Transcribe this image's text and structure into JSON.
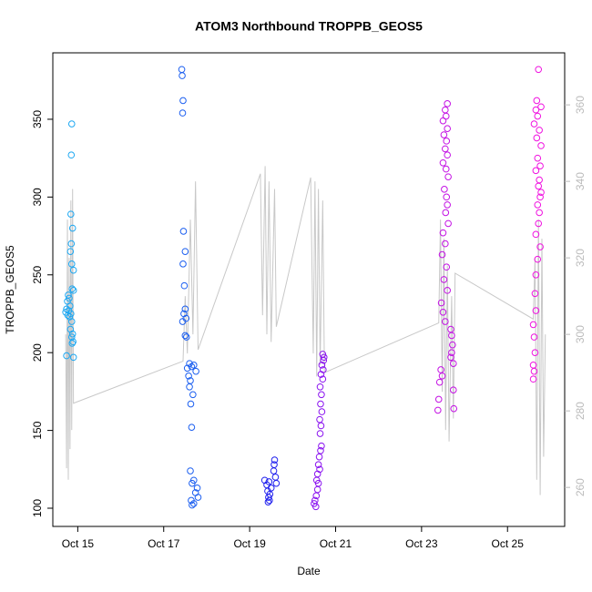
{
  "chart_data": {
    "type": "scatter",
    "title": "ATOM3 Northbound TROPPB_GEOS5",
    "x_label": "Date",
    "y_label": "TROPPB_GEOS5",
    "xlim": [
      14.42,
      26.33
    ],
    "xticks": [
      {
        "value": 15,
        "label": "Oct 15"
      },
      {
        "value": 17,
        "label": "Oct 17"
      },
      {
        "value": 19,
        "label": "Oct 19"
      },
      {
        "value": 21,
        "label": "Oct 21"
      },
      {
        "value": 23,
        "label": "Oct 23"
      },
      {
        "value": 25,
        "label": "Oct 25"
      }
    ],
    "ylim": [
      88.3,
      392.7
    ],
    "yticks": [
      100,
      150,
      200,
      250,
      300,
      350
    ],
    "y2lim": [
      249.8,
      373.6
    ],
    "y2ticks": [
      260,
      280,
      300,
      320,
      340,
      360
    ],
    "y2_color": "#bbbbbb",
    "series": [
      {
        "color": "#1ea8f2",
        "x": [
          14.86,
          14.85,
          14.84,
          14.88,
          14.85,
          14.83,
          14.86,
          14.9,
          14.87,
          14.9,
          14.78,
          14.8,
          14.76,
          14.82,
          14.74,
          14.79,
          14.72,
          14.84,
          14.77,
          14.81,
          14.86,
          14.83,
          14.88,
          14.86,
          14.89,
          14.87,
          14.74,
          14.9
        ],
        "values": [
          347,
          327,
          289,
          280,
          270,
          265,
          257,
          253,
          241,
          240,
          237,
          235,
          233,
          230,
          228,
          227,
          226,
          225,
          224,
          223,
          220,
          215,
          212,
          210,
          207,
          206,
          198,
          197
        ]
      },
      {
        "color": "#1c5ff0",
        "x": [
          17.42,
          17.43,
          17.45,
          17.44,
          17.46,
          17.5,
          17.45,
          17.48,
          17.5,
          17.47,
          17.52,
          17.44,
          17.5,
          17.53,
          17.6,
          17.7,
          17.65,
          17.55,
          17.75,
          17.58,
          17.62,
          17.6,
          17.68,
          17.63,
          17.65,
          17.62,
          17.7,
          17.66,
          17.78,
          17.74,
          17.8,
          17.64,
          17.7,
          17.66
        ],
        "values": [
          382,
          378,
          362,
          354,
          278,
          265,
          257,
          243,
          228,
          225,
          222,
          220,
          211,
          210,
          193,
          192,
          191,
          190,
          188,
          185,
          182,
          178,
          173,
          167,
          152,
          124,
          118,
          116,
          113,
          110,
          107,
          105,
          103,
          102
        ]
      },
      {
        "color": "#2020ee",
        "x": [
          19.58,
          19.57,
          19.56,
          19.6,
          19.35,
          19.45,
          19.62,
          19.4,
          19.5,
          19.42,
          19.47,
          19.44,
          19.46,
          19.43
        ],
        "values": [
          131,
          128,
          124,
          120,
          118,
          117,
          116,
          115,
          113,
          111,
          109,
          107,
          105,
          104
        ]
      },
      {
        "color": "#8a12f0",
        "x": [
          20.7,
          20.73,
          20.72,
          20.68,
          20.71,
          20.66,
          20.7,
          20.64,
          20.67,
          20.65,
          20.68,
          20.63,
          20.66,
          20.64,
          20.67,
          20.65,
          20.62,
          20.6,
          20.63,
          20.58,
          20.56,
          20.6,
          20.58,
          20.55,
          20.52,
          20.5,
          20.54
        ],
        "values": [
          199,
          197,
          195,
          192,
          189,
          186,
          183,
          178,
          173,
          167,
          162,
          157,
          153,
          148,
          140,
          137,
          133,
          128,
          125,
          122,
          118,
          116,
          112,
          108,
          105,
          103,
          101
        ]
      },
      {
        "color": "#c412e4",
        "x": [
          23.6,
          23.55,
          23.57,
          23.5,
          23.6,
          23.52,
          23.58,
          23.55,
          23.6,
          23.5,
          23.57,
          23.62,
          23.53,
          23.58,
          23.6,
          23.56,
          23.62,
          23.5,
          23.55,
          23.48,
          23.58,
          23.52,
          23.6,
          23.46,
          23.5,
          23.55,
          23.68,
          23.7,
          23.72,
          23.7,
          23.68,
          23.74,
          23.45,
          23.48,
          23.42,
          23.74,
          23.4,
          23.75,
          23.38
        ],
        "values": [
          360,
          356,
          352,
          349,
          344,
          340,
          336,
          331,
          327,
          322,
          318,
          313,
          305,
          300,
          295,
          290,
          283,
          277,
          270,
          263,
          255,
          247,
          240,
          232,
          226,
          220,
          215,
          211,
          205,
          200,
          197,
          193,
          189,
          185,
          181,
          176,
          170,
          164,
          163
        ]
      },
      {
        "color": "#f012e0",
        "x": [
          25.72,
          25.68,
          25.78,
          25.66,
          25.7,
          25.62,
          25.74,
          25.68,
          25.78,
          25.7,
          25.76,
          25.66,
          25.74,
          25.72,
          25.78,
          25.76,
          25.7,
          25.74,
          25.72,
          25.66,
          25.76,
          25.7,
          25.66,
          25.64,
          25.66,
          25.6,
          25.62,
          25.64,
          25.6,
          25.62,
          25.6
        ],
        "values": [
          382,
          362,
          358,
          356,
          352,
          347,
          343,
          338,
          333,
          325,
          320,
          317,
          311,
          307,
          303,
          300,
          295,
          290,
          283,
          276,
          268,
          260,
          250,
          238,
          227,
          218,
          210,
          200,
          192,
          188,
          183
        ]
      },
      {
        "type": "line",
        "axis": "y2",
        "color": "#c8c8c8",
        "x": [
          14.72,
          14.74,
          14.76,
          14.78,
          14.8,
          14.82,
          14.84,
          14.86,
          14.88,
          14.9,
          17.45,
          17.5,
          17.55,
          17.62,
          17.68,
          17.74,
          17.8,
          19.25,
          19.3,
          19.36,
          19.4,
          19.45,
          19.5,
          19.58,
          19.62,
          20.42,
          20.48,
          20.52,
          20.56,
          20.6,
          20.64,
          20.7,
          20.74,
          23.4,
          23.44,
          23.48,
          23.52,
          23.56,
          23.6,
          23.64,
          23.7,
          23.74,
          23.78,
          25.6,
          25.64,
          25.68,
          25.72,
          25.76,
          25.8,
          25.84,
          25.88
        ],
        "values": [
          300,
          265,
          330,
          262,
          320,
          270,
          335,
          275,
          338,
          282,
          293,
          310,
          295,
          330,
          300,
          340,
          296,
          342,
          305,
          344,
          300,
          340,
          298,
          338,
          302,
          341,
          295,
          340,
          289,
          338,
          292,
          335,
          290,
          303,
          330,
          285,
          325,
          275,
          318,
          272,
          310,
          278,
          316,
          304,
          320,
          262,
          330,
          258,
          325,
          268,
          300
        ]
      }
    ]
  }
}
